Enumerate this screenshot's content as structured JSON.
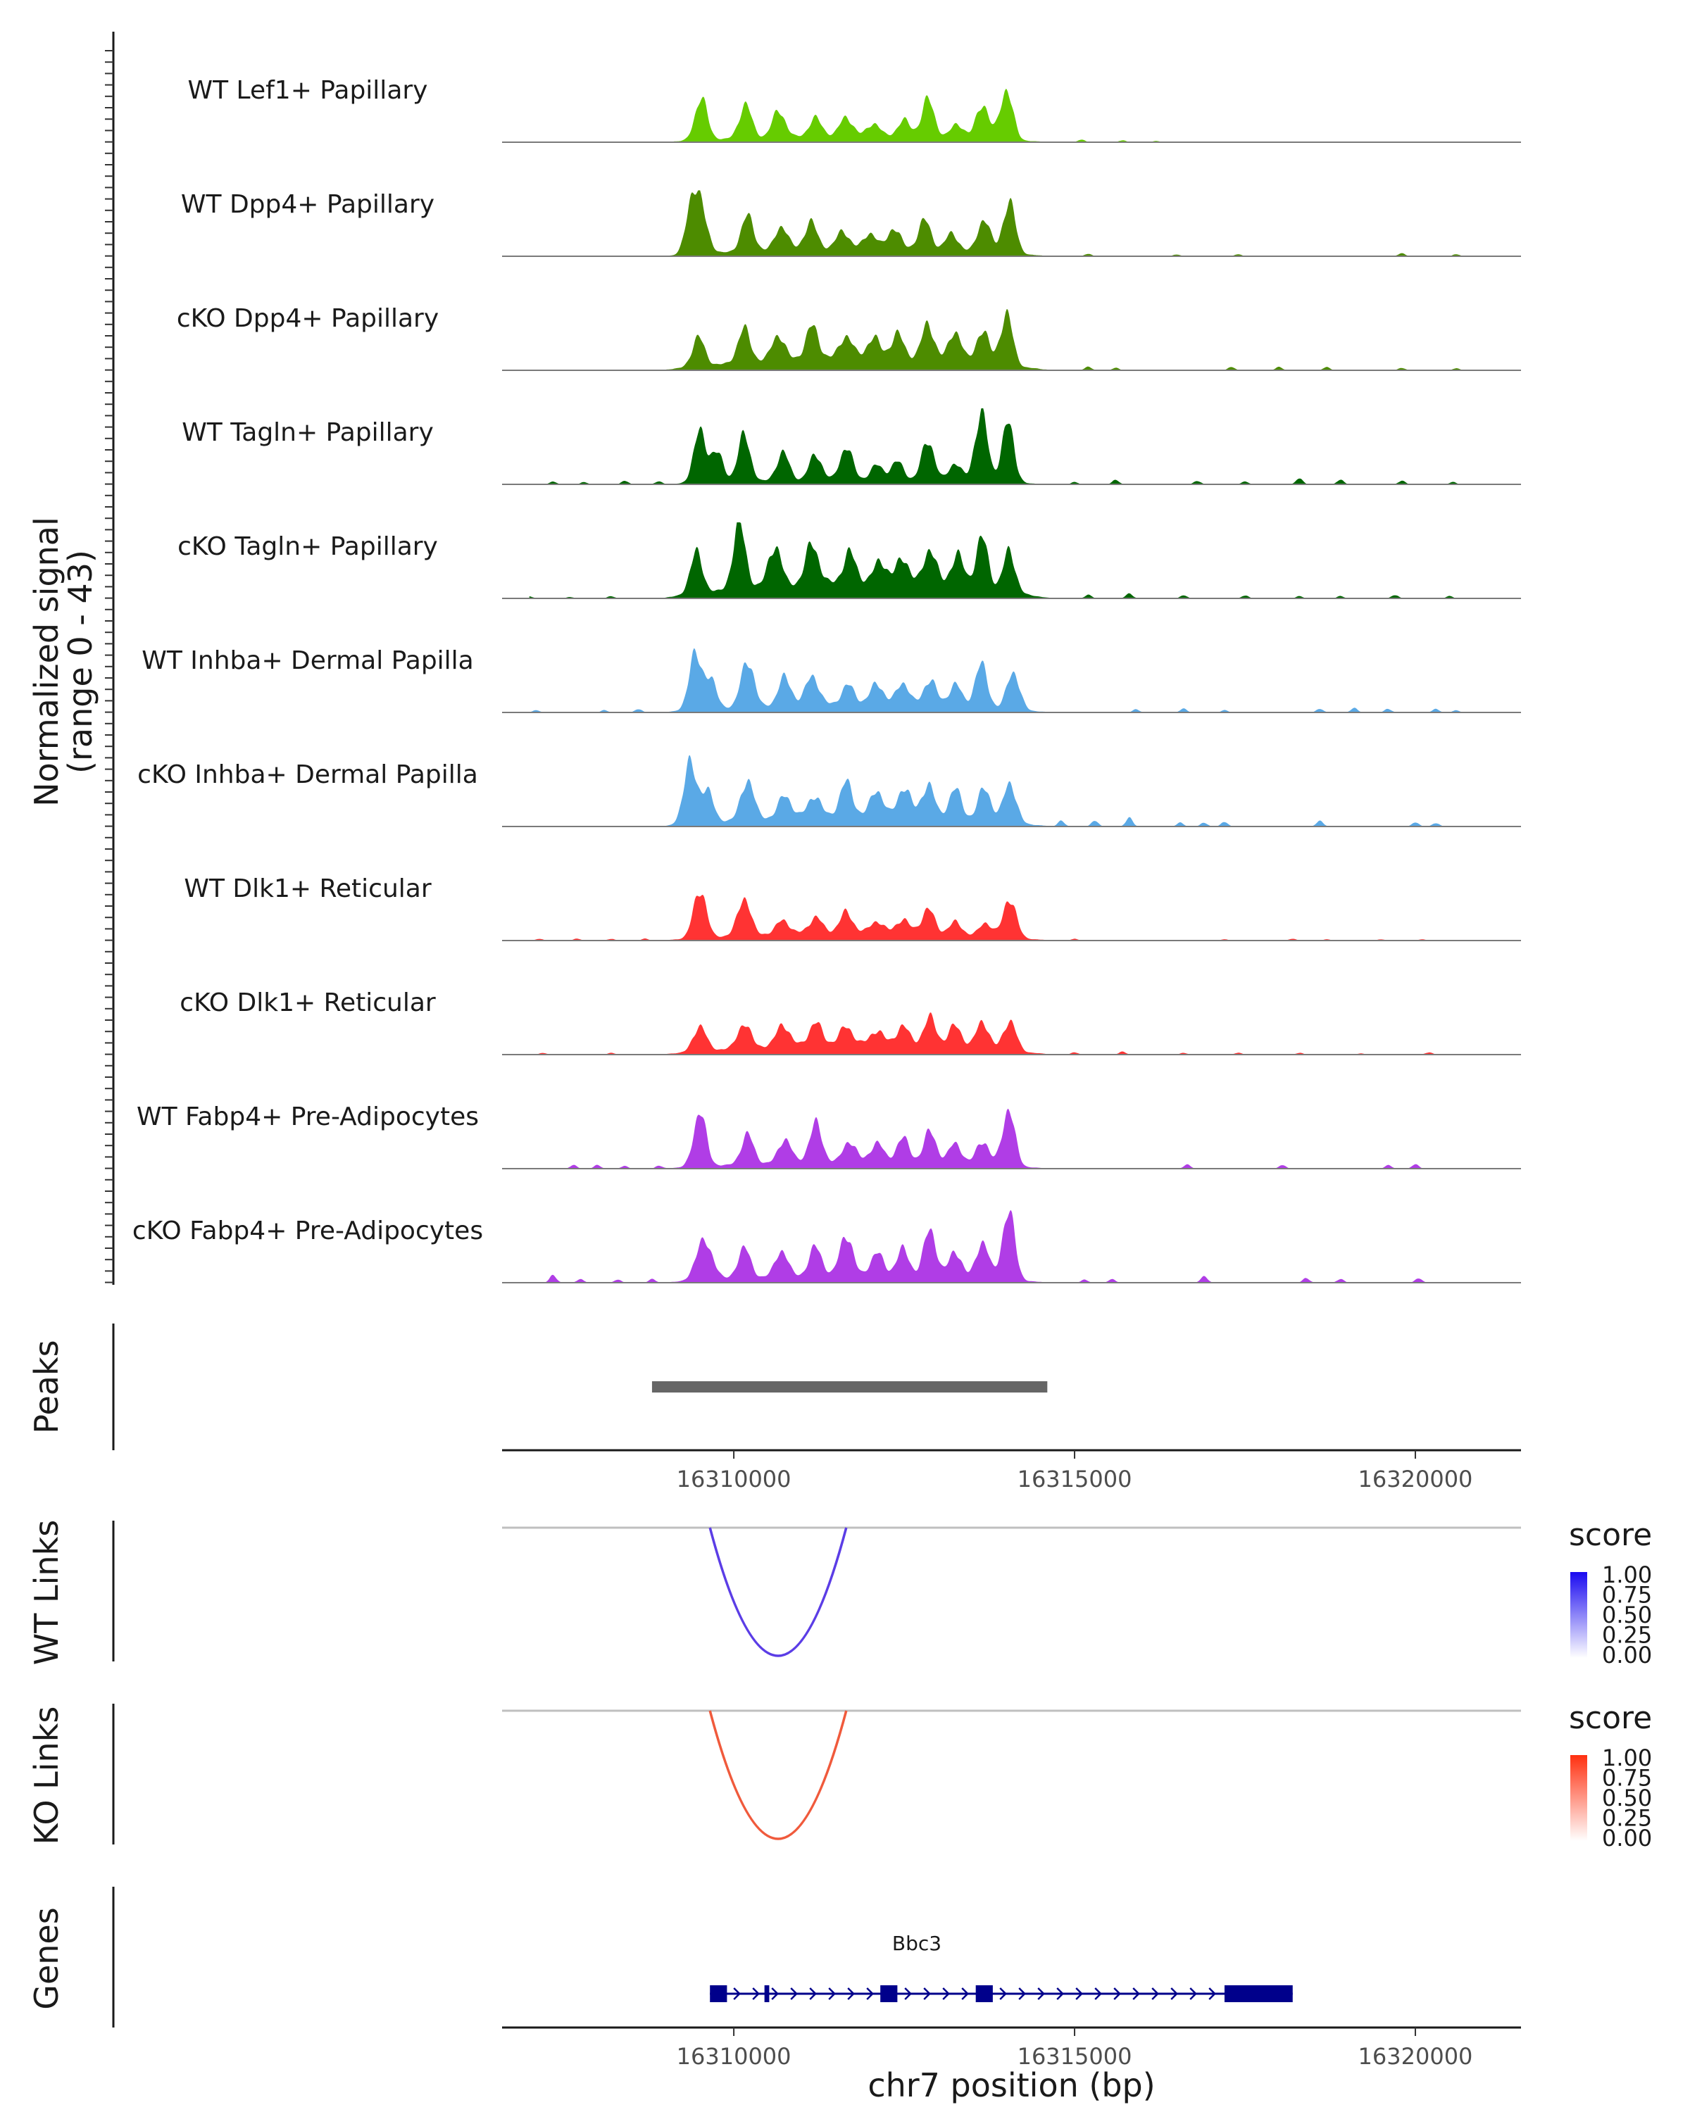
{
  "chart_data": {
    "type": "coverage",
    "region": {
      "chrom": "chr7",
      "start": 16306600,
      "end": 16321550
    },
    "signal_axis": {
      "label_line1": "Normalized signal",
      "label_line2": "(range 0 - 43)",
      "ylim": [
        0,
        43
      ]
    },
    "tracks": [
      {
        "name": "WT Lef1+ Papillary",
        "color": "#66cc00",
        "scale": 0.78,
        "tail": 0.1,
        "peaks": [
          [
            16309520,
            0.65
          ],
          [
            16310170,
            0.52
          ],
          [
            16310660,
            0.42
          ],
          [
            16311200,
            0.28
          ],
          [
            16311650,
            0.3
          ],
          [
            16312050,
            0.2
          ],
          [
            16312500,
            0.25
          ],
          [
            16312850,
            0.58
          ],
          [
            16313280,
            0.22
          ],
          [
            16313650,
            0.55
          ],
          [
            16314000,
            0.8
          ]
        ],
        "smalls": [
          [
            16315100,
            0.04
          ],
          [
            16315700,
            0.03
          ],
          [
            16316200,
            0.02
          ]
        ]
      },
      {
        "name": "WT Dpp4+ Papillary",
        "color": "#4d8c00",
        "scale": 0.78,
        "tail": 0.12,
        "peaks": [
          [
            16309400,
            0.92
          ],
          [
            16309550,
            0.45
          ],
          [
            16310200,
            0.55
          ],
          [
            16310700,
            0.38
          ],
          [
            16311130,
            0.42
          ],
          [
            16311600,
            0.28
          ],
          [
            16312000,
            0.25
          ],
          [
            16312350,
            0.33
          ],
          [
            16312800,
            0.46
          ],
          [
            16313200,
            0.27
          ],
          [
            16313670,
            0.52
          ],
          [
            16314040,
            0.8
          ]
        ],
        "smalls": [
          [
            16315200,
            0.04
          ],
          [
            16316500,
            0.03
          ],
          [
            16317400,
            0.03
          ],
          [
            16319800,
            0.05
          ],
          [
            16320600,
            0.03
          ]
        ]
      },
      {
        "name": "cKO Dpp4+ Papillary",
        "color": "#4d8c00",
        "scale": 0.78,
        "tail": 0.2,
        "peaks": [
          [
            16309480,
            0.45
          ],
          [
            16310150,
            0.52
          ],
          [
            16310650,
            0.4
          ],
          [
            16311150,
            0.5
          ],
          [
            16311650,
            0.35
          ],
          [
            16312050,
            0.32
          ],
          [
            16312400,
            0.38
          ],
          [
            16312850,
            0.55
          ],
          [
            16313250,
            0.48
          ],
          [
            16313650,
            0.52
          ],
          [
            16314000,
            0.8
          ]
        ],
        "smalls": [
          [
            16315200,
            0.06
          ],
          [
            16315600,
            0.04
          ],
          [
            16317300,
            0.05
          ],
          [
            16318000,
            0.05
          ],
          [
            16318700,
            0.05
          ],
          [
            16319800,
            0.04
          ],
          [
            16320600,
            0.03
          ]
        ]
      },
      {
        "name": "WT Tagln+ Papillary",
        "color": "#006600",
        "scale": 0.9,
        "tail": 0.06,
        "peaks": [
          [
            16309500,
            0.68
          ],
          [
            16309750,
            0.4
          ],
          [
            16310150,
            0.62
          ],
          [
            16310720,
            0.38
          ],
          [
            16311200,
            0.35
          ],
          [
            16311650,
            0.45
          ],
          [
            16312100,
            0.2
          ],
          [
            16312400,
            0.25
          ],
          [
            16312850,
            0.55
          ],
          [
            16313250,
            0.25
          ],
          [
            16313630,
            0.95
          ],
          [
            16314020,
            0.8
          ]
        ],
        "smalls": [
          [
            16307350,
            0.04
          ],
          [
            16307800,
            0.03
          ],
          [
            16308400,
            0.05
          ],
          [
            16308900,
            0.04
          ],
          [
            16315000,
            0.03
          ],
          [
            16315600,
            0.06
          ],
          [
            16316800,
            0.05
          ],
          [
            16317500,
            0.04
          ],
          [
            16318300,
            0.08
          ],
          [
            16318900,
            0.06
          ],
          [
            16319800,
            0.05
          ],
          [
            16320550,
            0.03
          ]
        ]
      },
      {
        "name": "cKO Tagln+ Papillary",
        "color": "#006600",
        "scale": 0.9,
        "tail": 0.22,
        "peaks": [
          [
            16309450,
            0.55
          ],
          [
            16310080,
            0.88
          ],
          [
            16310600,
            0.55
          ],
          [
            16311150,
            0.55
          ],
          [
            16311700,
            0.4
          ],
          [
            16312150,
            0.3
          ],
          [
            16312480,
            0.35
          ],
          [
            16312880,
            0.5
          ],
          [
            16313280,
            0.45
          ],
          [
            16313640,
            0.7
          ],
          [
            16314040,
            0.55
          ]
        ],
        "smalls": [
          [
            16307000,
            0.03
          ],
          [
            16307600,
            0.02
          ],
          [
            16308200,
            0.03
          ],
          [
            16315200,
            0.05
          ],
          [
            16315800,
            0.07
          ],
          [
            16316600,
            0.04
          ],
          [
            16317500,
            0.04
          ],
          [
            16318300,
            0.03
          ],
          [
            16318900,
            0.03
          ],
          [
            16319700,
            0.05
          ],
          [
            16320500,
            0.03
          ]
        ]
      },
      {
        "name": "WT Inhba+ Dermal Papilla",
        "color": "#5aa9e6",
        "scale": 0.9,
        "tail": 0.12,
        "peaks": [
          [
            16309430,
            0.72
          ],
          [
            16309650,
            0.4
          ],
          [
            16310200,
            0.65
          ],
          [
            16310750,
            0.38
          ],
          [
            16311150,
            0.4
          ],
          [
            16311680,
            0.25
          ],
          [
            16312100,
            0.28
          ],
          [
            16312480,
            0.3
          ],
          [
            16312880,
            0.35
          ],
          [
            16313250,
            0.3
          ],
          [
            16313630,
            0.58
          ],
          [
            16314100,
            0.52
          ]
        ],
        "smalls": [
          [
            16307100,
            0.03
          ],
          [
            16308100,
            0.03
          ],
          [
            16308600,
            0.05
          ],
          [
            16315900,
            0.04
          ],
          [
            16316600,
            0.05
          ],
          [
            16317200,
            0.03
          ],
          [
            16318600,
            0.05
          ],
          [
            16319100,
            0.06
          ],
          [
            16319600,
            0.05
          ],
          [
            16320300,
            0.05
          ],
          [
            16320600,
            0.03
          ]
        ]
      },
      {
        "name": "cKO Inhba+ Dermal Papilla",
        "color": "#5aa9e6",
        "scale": 0.9,
        "tail": 0.15,
        "peaks": [
          [
            16309350,
            0.8
          ],
          [
            16309600,
            0.45
          ],
          [
            16310200,
            0.55
          ],
          [
            16310750,
            0.3
          ],
          [
            16311180,
            0.28
          ],
          [
            16311650,
            0.45
          ],
          [
            16312100,
            0.35
          ],
          [
            16312500,
            0.4
          ],
          [
            16312850,
            0.45
          ],
          [
            16313250,
            0.4
          ],
          [
            16313680,
            0.45
          ],
          [
            16314050,
            0.55
          ]
        ],
        "smalls": [
          [
            16314800,
            0.08
          ],
          [
            16315300,
            0.08
          ],
          [
            16315800,
            0.12
          ],
          [
            16316550,
            0.05
          ],
          [
            16316900,
            0.05
          ],
          [
            16317200,
            0.06
          ],
          [
            16318600,
            0.08
          ],
          [
            16320000,
            0.06
          ],
          [
            16320300,
            0.05
          ]
        ]
      },
      {
        "name": "WT Dlk1+ Reticular",
        "color": "#ff3333",
        "scale": 0.75,
        "tail": 0.14,
        "peaks": [
          [
            16309500,
            0.8
          ],
          [
            16310150,
            0.62
          ],
          [
            16310720,
            0.22
          ],
          [
            16311200,
            0.25
          ],
          [
            16311650,
            0.32
          ],
          [
            16312100,
            0.18
          ],
          [
            16312480,
            0.22
          ],
          [
            16312850,
            0.4
          ],
          [
            16313250,
            0.2
          ],
          [
            16313700,
            0.22
          ],
          [
            16314050,
            0.65
          ]
        ],
        "smalls": [
          [
            16307150,
            0.03
          ],
          [
            16307700,
            0.03
          ],
          [
            16308200,
            0.03
          ],
          [
            16308700,
            0.03
          ],
          [
            16315000,
            0.03
          ],
          [
            16317200,
            0.02
          ],
          [
            16318200,
            0.03
          ],
          [
            16318700,
            0.02
          ],
          [
            16319500,
            0.02
          ],
          [
            16320100,
            0.02
          ]
        ]
      },
      {
        "name": "cKO Dlk1+ Reticular",
        "color": "#ff3333",
        "scale": 0.75,
        "tail": 0.18,
        "peaks": [
          [
            16309500,
            0.42
          ],
          [
            16310150,
            0.4
          ],
          [
            16310720,
            0.35
          ],
          [
            16311200,
            0.35
          ],
          [
            16311650,
            0.28
          ],
          [
            16312100,
            0.22
          ],
          [
            16312480,
            0.3
          ],
          [
            16312880,
            0.45
          ],
          [
            16313250,
            0.35
          ],
          [
            16313650,
            0.45
          ],
          [
            16314050,
            0.5
          ]
        ],
        "smalls": [
          [
            16307200,
            0.03
          ],
          [
            16308200,
            0.03
          ],
          [
            16315000,
            0.04
          ],
          [
            16315700,
            0.05
          ],
          [
            16316600,
            0.03
          ],
          [
            16317400,
            0.03
          ],
          [
            16318300,
            0.03
          ],
          [
            16319200,
            0.02
          ],
          [
            16320200,
            0.04
          ]
        ]
      },
      {
        "name": "WT Fabp4+ Pre-Adipocytes",
        "color": "#b03de6",
        "scale": 0.85,
        "tail": 0.1,
        "peaks": [
          [
            16309500,
            0.78
          ],
          [
            16310200,
            0.42
          ],
          [
            16310750,
            0.35
          ],
          [
            16311200,
            0.55
          ],
          [
            16311700,
            0.3
          ],
          [
            16312100,
            0.28
          ],
          [
            16312480,
            0.35
          ],
          [
            16312880,
            0.45
          ],
          [
            16313250,
            0.3
          ],
          [
            16313650,
            0.35
          ],
          [
            16314030,
            0.82
          ]
        ],
        "smalls": [
          [
            16307650,
            0.05
          ],
          [
            16308000,
            0.05
          ],
          [
            16308400,
            0.04
          ],
          [
            16308900,
            0.04
          ],
          [
            16316650,
            0.06
          ],
          [
            16318050,
            0.05
          ],
          [
            16319600,
            0.05
          ],
          [
            16320000,
            0.06
          ]
        ]
      },
      {
        "name": "cKO Fabp4+ Pre-Adipocytes",
        "color": "#b03de6",
        "scale": 0.92,
        "tail": 0.1,
        "peaks": [
          [
            16309500,
            0.38
          ],
          [
            16309650,
            0.3
          ],
          [
            16310150,
            0.4
          ],
          [
            16310700,
            0.35
          ],
          [
            16311200,
            0.38
          ],
          [
            16311650,
            0.55
          ],
          [
            16312100,
            0.3
          ],
          [
            16312480,
            0.35
          ],
          [
            16312880,
            0.62
          ],
          [
            16313250,
            0.35
          ],
          [
            16313650,
            0.5
          ],
          [
            16314030,
            0.92
          ]
        ],
        "smalls": [
          [
            16307350,
            0.1
          ],
          [
            16307750,
            0.05
          ],
          [
            16308300,
            0.04
          ],
          [
            16308800,
            0.05
          ],
          [
            16315150,
            0.04
          ],
          [
            16315550,
            0.05
          ],
          [
            16316900,
            0.09
          ],
          [
            16318400,
            0.06
          ],
          [
            16318900,
            0.05
          ],
          [
            16320050,
            0.06
          ]
        ]
      }
    ],
    "peaks_track": {
      "label": "Peaks",
      "intervals": [
        [
          16308800,
          16314600
        ]
      ],
      "color": "#666666"
    },
    "x_axis": {
      "ticks": [
        16310000,
        16315000,
        16320000
      ],
      "tick_labels": [
        "16310000",
        "16315000",
        "16320000"
      ],
      "title": "chr7 position (bp)"
    },
    "links": [
      {
        "label": "WT Links",
        "start": 16309650,
        "end": 16311650,
        "score": 0.8,
        "color": "#5b3de6",
        "legend": {
          "title": "score",
          "high": "#1a0af0",
          "low": "#ffffff",
          "ticks": [
            "1.00",
            "0.75",
            "0.50",
            "0.25",
            "0.00"
          ]
        }
      },
      {
        "label": "KO Links",
        "start": 16309650,
        "end": 16311650,
        "score": 0.8,
        "color": "#f05a3c",
        "legend": {
          "title": "score",
          "high": "#ff3010",
          "low": "#ffffff",
          "ticks": [
            "1.00",
            "0.75",
            "0.50",
            "0.25",
            "0.00"
          ]
        }
      }
    ],
    "genes": {
      "label": "Genes",
      "items": [
        {
          "name": "Bbc3",
          "start": 16309650,
          "end": 16318200,
          "strand": "+",
          "color": "#00008b",
          "exons": [
            [
              16309650,
              16309900
            ],
            [
              16310450,
              16310520
            ],
            [
              16312150,
              16312400
            ],
            [
              16313550,
              16313800
            ],
            [
              16317200,
              16318200
            ]
          ]
        }
      ]
    }
  }
}
